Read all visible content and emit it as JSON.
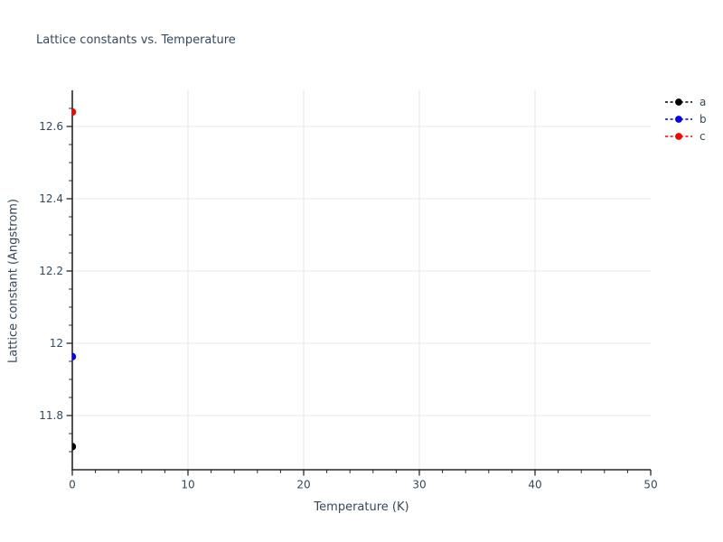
{
  "chart_data": {
    "type": "scatter",
    "title": "Lattice constants vs. Temperature",
    "xlabel": "Temperature (K)",
    "ylabel": "Lattice constant (Angstrom)",
    "xlim": [
      0,
      50
    ],
    "ylim": [
      11.65,
      12.7
    ],
    "xticks_major": [
      0,
      10,
      20,
      30,
      40,
      50
    ],
    "xticks_minor": [
      2,
      4,
      6,
      8,
      12,
      14,
      16,
      18,
      22,
      24,
      26,
      28,
      32,
      34,
      36,
      38,
      42,
      44,
      46,
      48
    ],
    "yticks_major": [
      11.8,
      12,
      12.2,
      12.4,
      12.6
    ],
    "yticks_minor": [
      11.7,
      11.75,
      11.85,
      11.9,
      11.95,
      12.05,
      12.1,
      12.15,
      12.25,
      12.3,
      12.35,
      12.45,
      12.5,
      12.55,
      12.65
    ],
    "gridlines_x": [
      10,
      20,
      30,
      40
    ],
    "gridlines_y": [
      11.8,
      12,
      12.2,
      12.4,
      12.6
    ],
    "grid": true,
    "legend_position": "outside-top-right",
    "legend_entries": [
      "a",
      "b",
      "c"
    ],
    "series": [
      {
        "name": "a",
        "color": "#000000",
        "marker": "circle",
        "linestyle": "dashed",
        "x": [
          0
        ],
        "y": [
          11.714
        ]
      },
      {
        "name": "b",
        "color": "#0000ff",
        "marker": "circle",
        "linestyle": "dashed",
        "x": [
          0
        ],
        "y": [
          11.963
        ]
      },
      {
        "name": "c",
        "color": "#ff0000",
        "marker": "circle",
        "linestyle": "dashed",
        "x": [
          0
        ],
        "y": [
          12.64
        ]
      }
    ]
  },
  "style": {
    "text_color": "#34495e",
    "spine_color": "#262626",
    "grid_color": "#e7e7e7",
    "background": "#ffffff"
  }
}
